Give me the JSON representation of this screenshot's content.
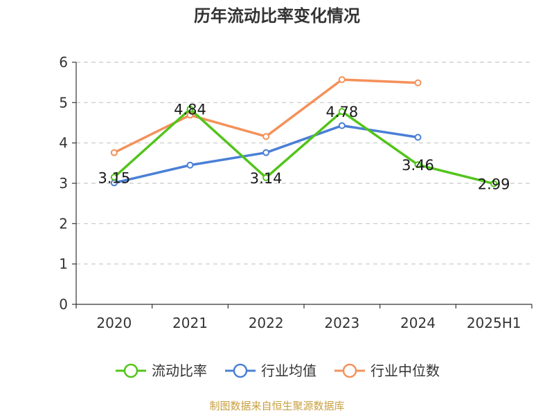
{
  "chart_data": {
    "type": "line",
    "title": "历年流动比率变化情况",
    "categories": [
      "2020",
      "2021",
      "2022",
      "2023",
      "2024",
      "2025H1"
    ],
    "ylim": [
      0,
      6
    ],
    "yticks": [
      0,
      1,
      2,
      3,
      4,
      5,
      6
    ],
    "grid": true,
    "legend_position": "bottom",
    "series": [
      {
        "name": "流动比率",
        "color": "#52c41a",
        "values": [
          3.15,
          4.84,
          3.14,
          4.78,
          3.46,
          2.99
        ],
        "labels": [
          "3.15",
          "4.84",
          "3.14",
          "4.78",
          "3.46",
          "2.99"
        ]
      },
      {
        "name": "行业均值",
        "color": "#4a7fd6",
        "values": [
          3.01,
          3.45,
          3.76,
          4.43,
          4.14,
          null
        ]
      },
      {
        "name": "行业中位数",
        "color": "#f4915a",
        "values": [
          3.76,
          4.69,
          4.16,
          5.57,
          5.49,
          null
        ]
      }
    ]
  },
  "source_note": "制图数据来自恒生聚源数据库",
  "source_color": "#c8a040"
}
